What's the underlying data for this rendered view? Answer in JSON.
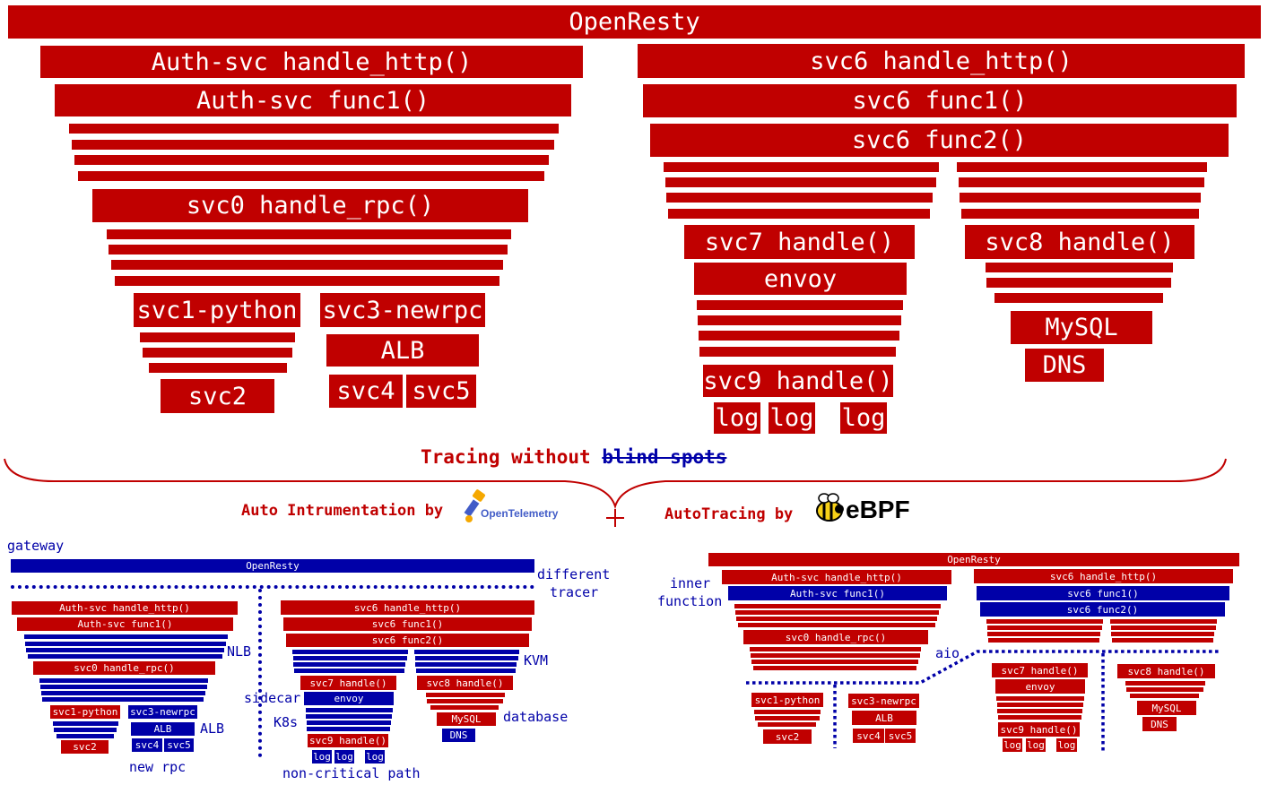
{
  "top": {
    "gateway": "OpenResty",
    "left_stack": {
      "entry": "Auth-svc handle_http()",
      "func1": "Auth-svc func1()",
      "rpc": "svc0 handle_rpc()",
      "python": "svc1-python",
      "newrpc": "svc3-newrpc",
      "alb": "ALB",
      "svc2": "svc2",
      "svc4": "svc4",
      "svc5": "svc5"
    },
    "right_stack": {
      "entry": "svc6 handle_http()",
      "func1": "svc6 func1()",
      "func2": "svc6 func2()",
      "svc7": "svc7 handle()",
      "envoy": "envoy",
      "svc9": "svc9 handle()",
      "log": "log",
      "svc8": "svc8 handle()",
      "mysql": "MySQL",
      "dns": "DNS"
    }
  },
  "headline": {
    "prefix": "Tracing without",
    "struck": "blind spots"
  },
  "section_left": {
    "title": "Auto Intrumentation by",
    "logo_text": "OpenTelemetry",
    "labels": {
      "gateway": "gateway",
      "different": "different",
      "tracer": "tracer",
      "nlb": "NLB",
      "alb": "ALB",
      "new_rpc": "new rpc",
      "sidecar": "sidecar",
      "k8s": "K8s",
      "kvm": "KVM",
      "database": "database",
      "non_critical": "non-critical path"
    }
  },
  "section_right": {
    "title": "AutoTracing by",
    "logo_text": "eBPF",
    "labels": {
      "inner": "inner",
      "function": "function",
      "aio": "aio"
    }
  },
  "colors": {
    "red": "#c00000",
    "blue": "#0000a8"
  }
}
